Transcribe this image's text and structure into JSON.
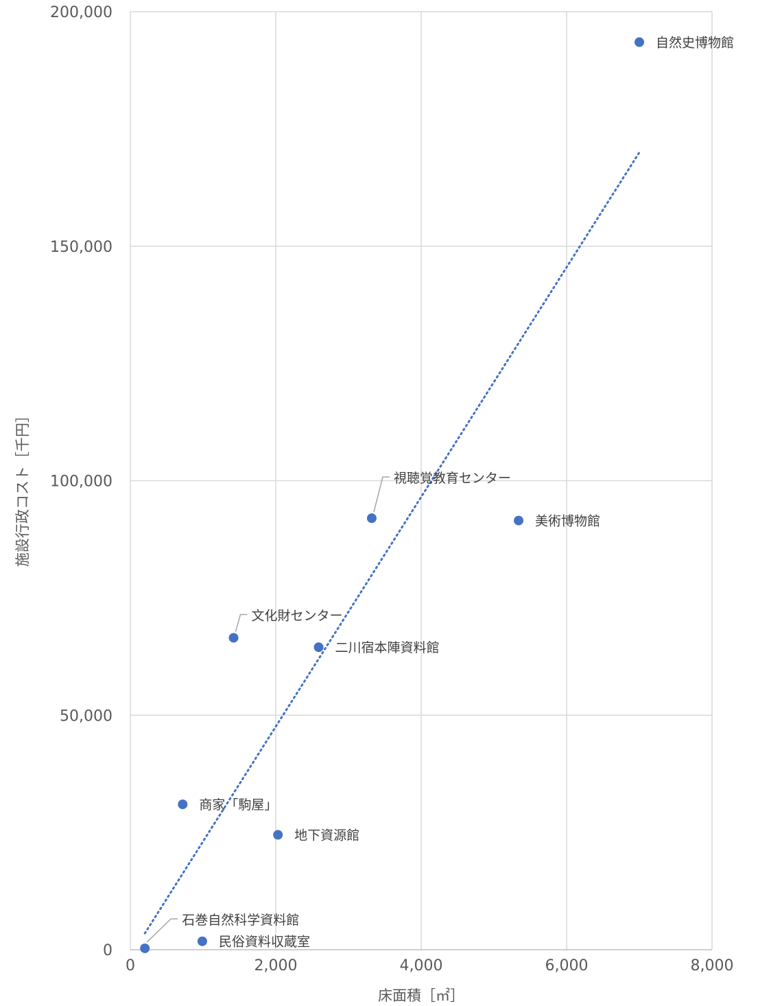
{
  "chart_data": {
    "type": "scatter",
    "xlabel": "床面積［㎡］",
    "ylabel": "施設行政コスト［千円］",
    "xlim": [
      0,
      8000
    ],
    "ylim": [
      0,
      200000
    ],
    "xticks": [
      "0",
      "2,000",
      "4,000",
      "6,000",
      "8,000"
    ],
    "yticks": [
      "0",
      "50,000",
      "100,000",
      "150,000",
      "200,000"
    ],
    "grid": true,
    "legend": "none",
    "marker_color": "#4472C4",
    "trendline": {
      "style": "dotted",
      "color": "#4472C4",
      "x": [
        200,
        7000
      ],
      "y": [
        3500,
        170000
      ]
    },
    "points": [
      {
        "label": "自然史博物館",
        "x": 7000,
        "y": 193500
      },
      {
        "label": "視聴覚教育センター",
        "x": 3320,
        "y": 92000
      },
      {
        "label": "美術博物館",
        "x": 5340,
        "y": 91500
      },
      {
        "label": "文化財センター",
        "x": 1420,
        "y": 66500
      },
      {
        "label": "二川宿本陣資料館",
        "x": 2590,
        "y": 64500
      },
      {
        "label": "商家「駒屋」",
        "x": 720,
        "y": 31000
      },
      {
        "label": "地下資源館",
        "x": 2030,
        "y": 24500
      },
      {
        "label": "石巻自然科学資料館",
        "x": 200,
        "y": 300
      },
      {
        "label": "民俗資料収蔵室",
        "x": 990,
        "y": 1800
      }
    ]
  }
}
